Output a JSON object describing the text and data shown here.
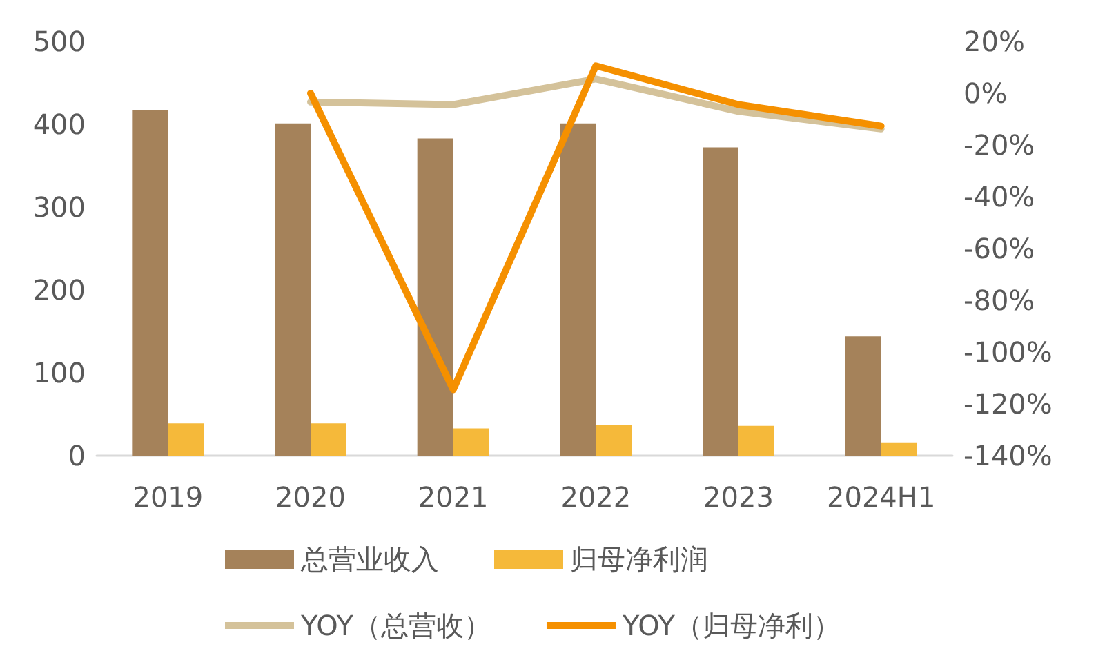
{
  "chart_data": {
    "type": "bar",
    "categories": [
      "2019",
      "2020",
      "2021",
      "2022",
      "2023",
      "2024H1"
    ],
    "series": [
      {
        "name": "总营业收入",
        "color": "#a5825a",
        "values": [
          417,
          401,
          383,
          401,
          372,
          144
        ]
      },
      {
        "name": "归母净利润",
        "color": "#f5b93a",
        "values": [
          39,
          39,
          33,
          37,
          36,
          16
        ]
      },
      {
        "name": "YOY（总营收）",
        "type": "line",
        "axis": "y2",
        "color": "#d4c29a",
        "values": [
          null,
          -3.4,
          -4.4,
          5.5,
          -7,
          -13.8
        ]
      },
      {
        "name": "YOY（归母净利）",
        "type": "line",
        "axis": "y2",
        "color": "#f59000",
        "values": [
          null,
          0,
          -114.5,
          10.6,
          -4.4,
          -12.7
        ]
      }
    ],
    "ylim": [
      0,
      500
    ],
    "yticks": [
      0,
      100,
      200,
      300,
      400,
      500
    ],
    "y2lim": [
      -140,
      20
    ],
    "y2ticks": [
      {
        "value": 20,
        "label": "20%"
      },
      {
        "value": 0,
        "label": "0%"
      },
      {
        "value": -20,
        "label": "-20%"
      },
      {
        "value": -40,
        "label": "-40%"
      },
      {
        "value": -60,
        "label": "-60%"
      },
      {
        "value": -80,
        "label": "-80%"
      },
      {
        "value": -100,
        "label": "-100%"
      },
      {
        "value": -120,
        "label": "-120%"
      },
      {
        "value": -140,
        "label": "-140%"
      }
    ],
    "grid": false,
    "legend": "bottom",
    "marker": "none",
    "line_style": "solid"
  }
}
